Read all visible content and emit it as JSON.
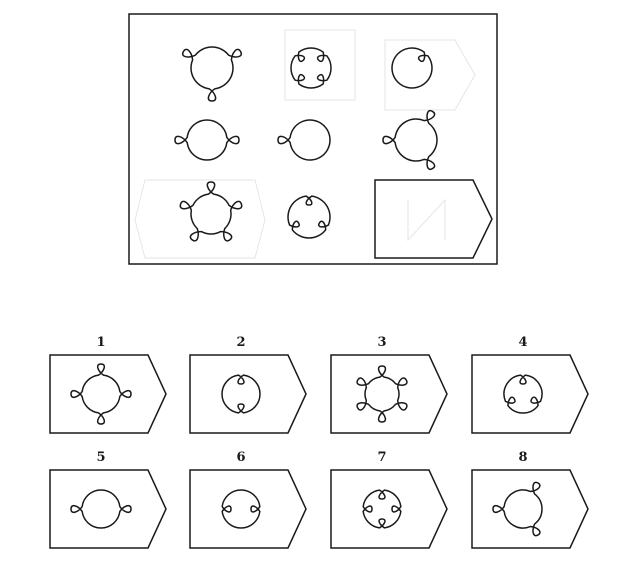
{
  "question": {
    "cells": [
      {
        "id": "r1c1",
        "loops": 3,
        "outward": true,
        "rotation": 90
      },
      {
        "id": "r1c2",
        "loops": 4,
        "outward": false,
        "rotation": 45
      },
      {
        "id": "r1c3",
        "loops": 1,
        "outward": false,
        "rotation": -45
      },
      {
        "id": "r2c1",
        "loops": 2,
        "outward": true,
        "rotation": 0
      },
      {
        "id": "r2c2",
        "loops": 1,
        "outward": true,
        "rotation": 180
      },
      {
        "id": "r2c3",
        "loops": 3,
        "outward": true,
        "rotation": 60
      },
      {
        "id": "r3c1",
        "loops": 5,
        "outward": true,
        "rotation": 54
      },
      {
        "id": "r3c2",
        "loops": 3,
        "outward": false,
        "rotation": 30
      }
    ],
    "missing_cell": "r3c3"
  },
  "options": [
    {
      "label": "1",
      "loops": 4,
      "outward": true,
      "rotation": 0
    },
    {
      "label": "2",
      "loops": 2,
      "outward": false,
      "rotation": 90
    },
    {
      "label": "3",
      "loops": 6,
      "outward": true,
      "rotation": 30
    },
    {
      "label": "4",
      "loops": 3,
      "outward": false,
      "rotation": 30
    },
    {
      "label": "5",
      "loops": 2,
      "outward": true,
      "rotation": 0
    },
    {
      "label": "6",
      "loops": 2,
      "outward": false,
      "rotation": 0
    },
    {
      "label": "7",
      "loops": 4,
      "outward": false,
      "rotation": 0
    },
    {
      "label": "8",
      "loops": 3,
      "outward": true,
      "rotation": 60
    }
  ]
}
